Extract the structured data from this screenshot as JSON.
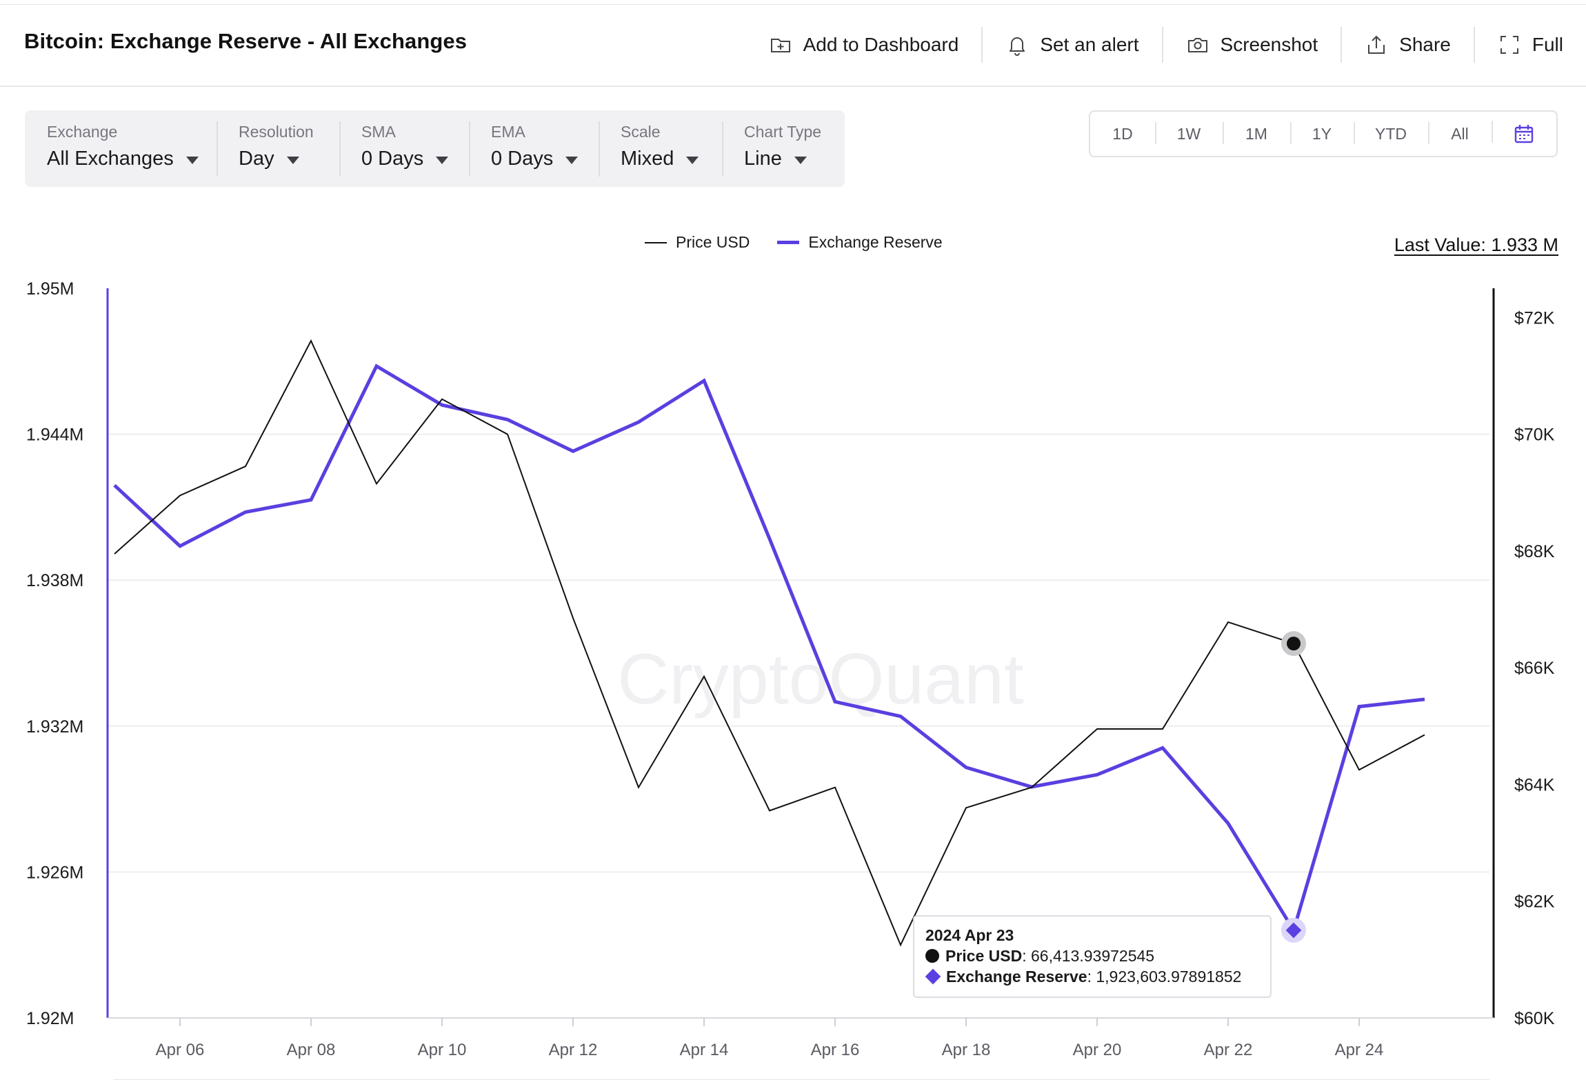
{
  "header": {
    "title": "Bitcoin: Exchange Reserve - All Exchanges",
    "actions": [
      {
        "label": "Add to Dashboard",
        "icon": "dashboard-add-icon"
      },
      {
        "label": "Set an alert",
        "icon": "bell-icon"
      },
      {
        "label": "Screenshot",
        "icon": "camera-icon"
      },
      {
        "label": "Share",
        "icon": "share-icon"
      },
      {
        "label": "Full",
        "icon": "fullscreen-icon"
      }
    ]
  },
  "filters": [
    {
      "label": "Exchange",
      "value": "All Exchanges"
    },
    {
      "label": "Resolution",
      "value": "Day"
    },
    {
      "label": "SMA",
      "value": "0 Days"
    },
    {
      "label": "EMA",
      "value": "0 Days"
    },
    {
      "label": "Scale",
      "value": "Mixed"
    },
    {
      "label": "Chart Type",
      "value": "Line"
    }
  ],
  "ranges": [
    "1D",
    "1W",
    "1M",
    "1Y",
    "YTD",
    "All"
  ],
  "legend": {
    "price": "Price USD",
    "reserve": "Exchange Reserve"
  },
  "last_value": "Last Value: 1.933 M",
  "watermark": "CryptoQuant",
  "tooltip": {
    "date": "2024 Apr 23",
    "price_label": "Price USD",
    "price_value": ": 66,413.93972545",
    "reserve_label": "Exchange Reserve",
    "reserve_value": ": 1,923,603.97891852"
  },
  "colors": {
    "reserve": "#5b3fe0",
    "price": "#111111",
    "grid": "#eeeeef"
  },
  "chart_data": {
    "type": "line",
    "x": [
      "2024-04-05",
      "2024-04-06",
      "2024-04-07",
      "2024-04-08",
      "2024-04-09",
      "2024-04-10",
      "2024-04-11",
      "2024-04-12",
      "2024-04-13",
      "2024-04-14",
      "2024-04-15",
      "2024-04-16",
      "2024-04-17",
      "2024-04-18",
      "2024-04-19",
      "2024-04-20",
      "2024-04-21",
      "2024-04-22",
      "2024-04-23",
      "2024-04-24",
      "2024-04-25"
    ],
    "x_tick_labels": [
      "Apr 06",
      "Apr 08",
      "Apr 10",
      "Apr 12",
      "Apr 14",
      "Apr 16",
      "Apr 18",
      "Apr 20",
      "Apr 22",
      "Apr 24"
    ],
    "series": [
      {
        "name": "Exchange Reserve",
        "axis": "left",
        "color": "#5b3fe0",
        "values": [
          1941900,
          1939400,
          1940800,
          1941300,
          1946800,
          1945200,
          1944600,
          1943300,
          1944500,
          1946200,
          1939700,
          1933000,
          1932400,
          1930300,
          1929500,
          1930000,
          1931100,
          1928000,
          1923604,
          1932800,
          1933100
        ]
      },
      {
        "name": "Price USD",
        "axis": "right",
        "color": "#111111",
        "values": [
          67950,
          68950,
          69450,
          71600,
          69150,
          70600,
          69999,
          66850,
          63950,
          65850,
          63550,
          63950,
          61250,
          63600,
          63950,
          64950,
          64950,
          66780,
          66414,
          64250,
          64850
        ]
      }
    ],
    "left_axis": {
      "ticks": [
        "1.92M",
        "1.926M",
        "1.932M",
        "1.938M",
        "1.944M",
        "1.95M"
      ],
      "range": [
        1920000,
        1950000
      ]
    },
    "right_axis": {
      "ticks": [
        "$60K",
        "$62K",
        "$64K",
        "$66K",
        "$68K",
        "$70K",
        "$72K"
      ],
      "range": [
        60000,
        72500
      ]
    },
    "grid": true,
    "legend_position": "top-center",
    "highlight_date": "2024-04-23"
  }
}
